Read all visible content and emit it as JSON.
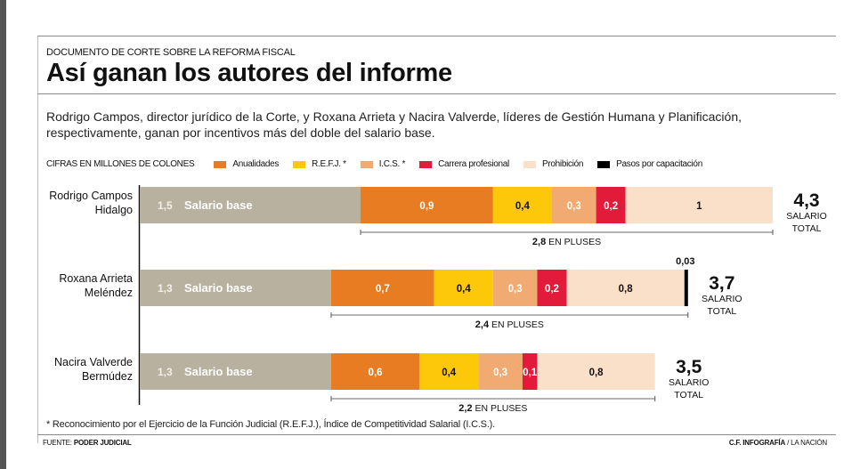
{
  "header": {
    "kicker": "DOCUMENTO DE CORTE SOBRE LA REFORMA FISCAL",
    "title": "Así ganan los autores del informe",
    "intro": "Rodrigo Campos, director jurídico de la Corte, y Roxana Arrieta y Nacira Valverde, líderes de Gestión Humana y Planificación, respectivamente, ganan por incentivos más del doble del salario base."
  },
  "legend": {
    "units": "CIFRAS EN MILLONES DE COLONES",
    "items": [
      {
        "label": "Anualidades",
        "color": "#e87c22"
      },
      {
        "label": "R.E.F.J. *",
        "color": "#fdc70a"
      },
      {
        "label": "I.C.S. *",
        "color": "#f0aa72"
      },
      {
        "label": "Carrera profesional",
        "color": "#e31b3b"
      },
      {
        "label": "Prohibición",
        "color": "#fae0c9"
      },
      {
        "label": "Pasos por capacitación",
        "color": "#000000"
      }
    ]
  },
  "chart_data": {
    "type": "bar",
    "orientation": "horizontal-stacked",
    "title": "Así ganan los autores del informe",
    "units": "CIFRAS EN MILLONES DE COLONES",
    "base_label": "Salario base",
    "base_color": "#b9b1a0",
    "categories": [
      "Rodrigo Campos Hidalgo",
      "Roxana Arrieta Meléndez",
      "Nacira Valverde Bermúdez"
    ],
    "series": [
      {
        "name": "Salario base",
        "color": "#b9b1a0",
        "values": [
          1.5,
          1.3,
          1.3
        ],
        "labels": [
          "1,5",
          "1,3",
          "1,3"
        ]
      },
      {
        "name": "Anualidades",
        "color": "#e87c22",
        "values": [
          0.9,
          0.7,
          0.6
        ],
        "labels": [
          "0,9",
          "0,7",
          "0,6"
        ]
      },
      {
        "name": "R.E.F.J.",
        "color": "#fdc70a",
        "values": [
          0.4,
          0.4,
          0.4
        ],
        "labels": [
          "0,4",
          "0,4",
          "0,4"
        ]
      },
      {
        "name": "I.C.S.",
        "color": "#f0aa72",
        "values": [
          0.3,
          0.3,
          0.3
        ],
        "labels": [
          "0,3",
          "0,3",
          "0,3"
        ]
      },
      {
        "name": "Carrera profesional",
        "color": "#e31b3b",
        "values": [
          0.2,
          0.2,
          0.1
        ],
        "labels": [
          "0,2",
          "0,2",
          "0,1"
        ]
      },
      {
        "name": "Prohibición",
        "color": "#fae0c9",
        "values": [
          1.0,
          0.8,
          0.8
        ],
        "labels": [
          "1",
          "0,8",
          "0,8"
        ]
      },
      {
        "name": "Pasos por capacitación",
        "color": "#000000",
        "values": [
          0,
          0.03,
          0
        ],
        "labels": [
          "",
          "0,03",
          ""
        ]
      }
    ],
    "totals": [
      4.3,
      3.7,
      3.5
    ],
    "total_labels": [
      "4,3",
      "3,7",
      "3,5"
    ],
    "total_caption_line1": "SALARIO",
    "total_caption_line2": "TOTAL",
    "pluses": [
      2.8,
      2.4,
      2.2
    ],
    "pluses_labels": [
      "2,8",
      "2,4",
      "2,2"
    ],
    "pluses_suffix": "EN PLUSES",
    "xlim": [
      0,
      4.3
    ],
    "grid": false,
    "legend_position": "top"
  },
  "footer": {
    "footnote": "* Reconocimiento por el Ejercicio de la Función Judicial (R.E.F.J.), Índice de Competitividad Salarial (I.C.S.).",
    "source_prefix": "FUENTE: ",
    "source_name": "PODER JUDICIAL",
    "credit_bold": "C.F. INFOGRAFÍA",
    "credit_rest": " / LA NACIÓN"
  }
}
